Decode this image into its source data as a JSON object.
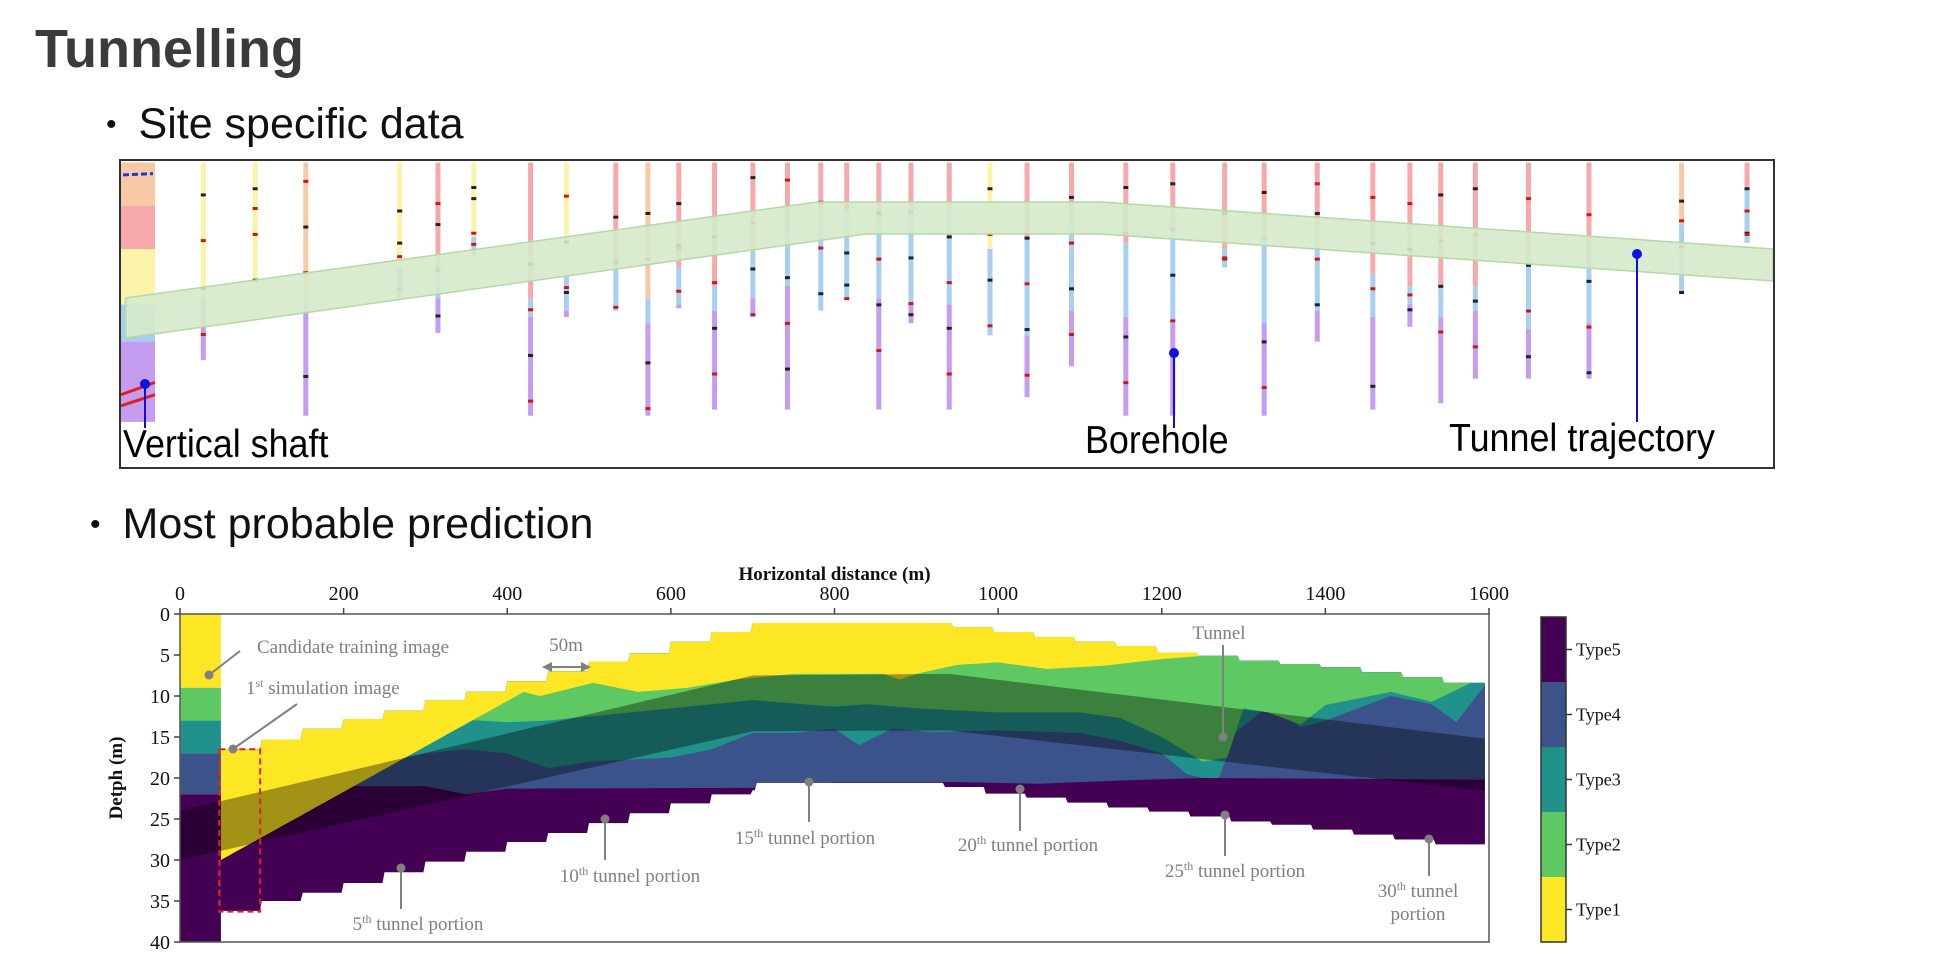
{
  "slide": {
    "title": "Tunnelling",
    "bullets": [
      "Site specific data",
      "Most probable prediction"
    ]
  },
  "site_figure": {
    "labels": {
      "vertical_shaft": "Vertical shaft",
      "borehole": "Borehole",
      "tunnel_trajectory": "Tunnel trajectory"
    }
  },
  "prediction_figure": {
    "x_axis_label": "Horizontal distance (m)",
    "y_axis_label": "Detph (m)",
    "x_ticks": [
      "0",
      "200",
      "400",
      "600",
      "800",
      "1000",
      "1200",
      "1400",
      "1600"
    ],
    "y_ticks": [
      "0",
      "5",
      "10",
      "15",
      "20",
      "25",
      "30",
      "35",
      "40"
    ],
    "x_range": [
      0,
      1600
    ],
    "y_range": [
      0,
      40
    ],
    "scale_bar": "50m",
    "annotations": {
      "candidate": "Candidate training image",
      "simulation": {
        "num": "1",
        "sup": "st",
        "text": " simulation image"
      },
      "tunnel": "Tunnel",
      "p5": {
        "num": "5",
        "sup": "th",
        "text": " tunnel portion"
      },
      "p10": {
        "num": "10",
        "sup": "th",
        "text": " tunnel portion"
      },
      "p15": {
        "num": "15",
        "sup": "th",
        "text": " tunnel portion"
      },
      "p20": {
        "num": "20",
        "sup": "th",
        "text": " tunnel portion"
      },
      "p25": {
        "num": "25",
        "sup": "th",
        "text": " tunnel portion"
      },
      "p30": {
        "num": "30",
        "sup": "th",
        "text": " tunnel",
        "line2": "portion"
      }
    },
    "legend": [
      {
        "label": "Type5",
        "color": "#440154"
      },
      {
        "label": "Type4",
        "color": "#3b528b"
      },
      {
        "label": "Type3",
        "color": "#21918c"
      },
      {
        "label": "Type2",
        "color": "#5ec962"
      },
      {
        "label": "Type1",
        "color": "#fde725"
      }
    ]
  }
}
